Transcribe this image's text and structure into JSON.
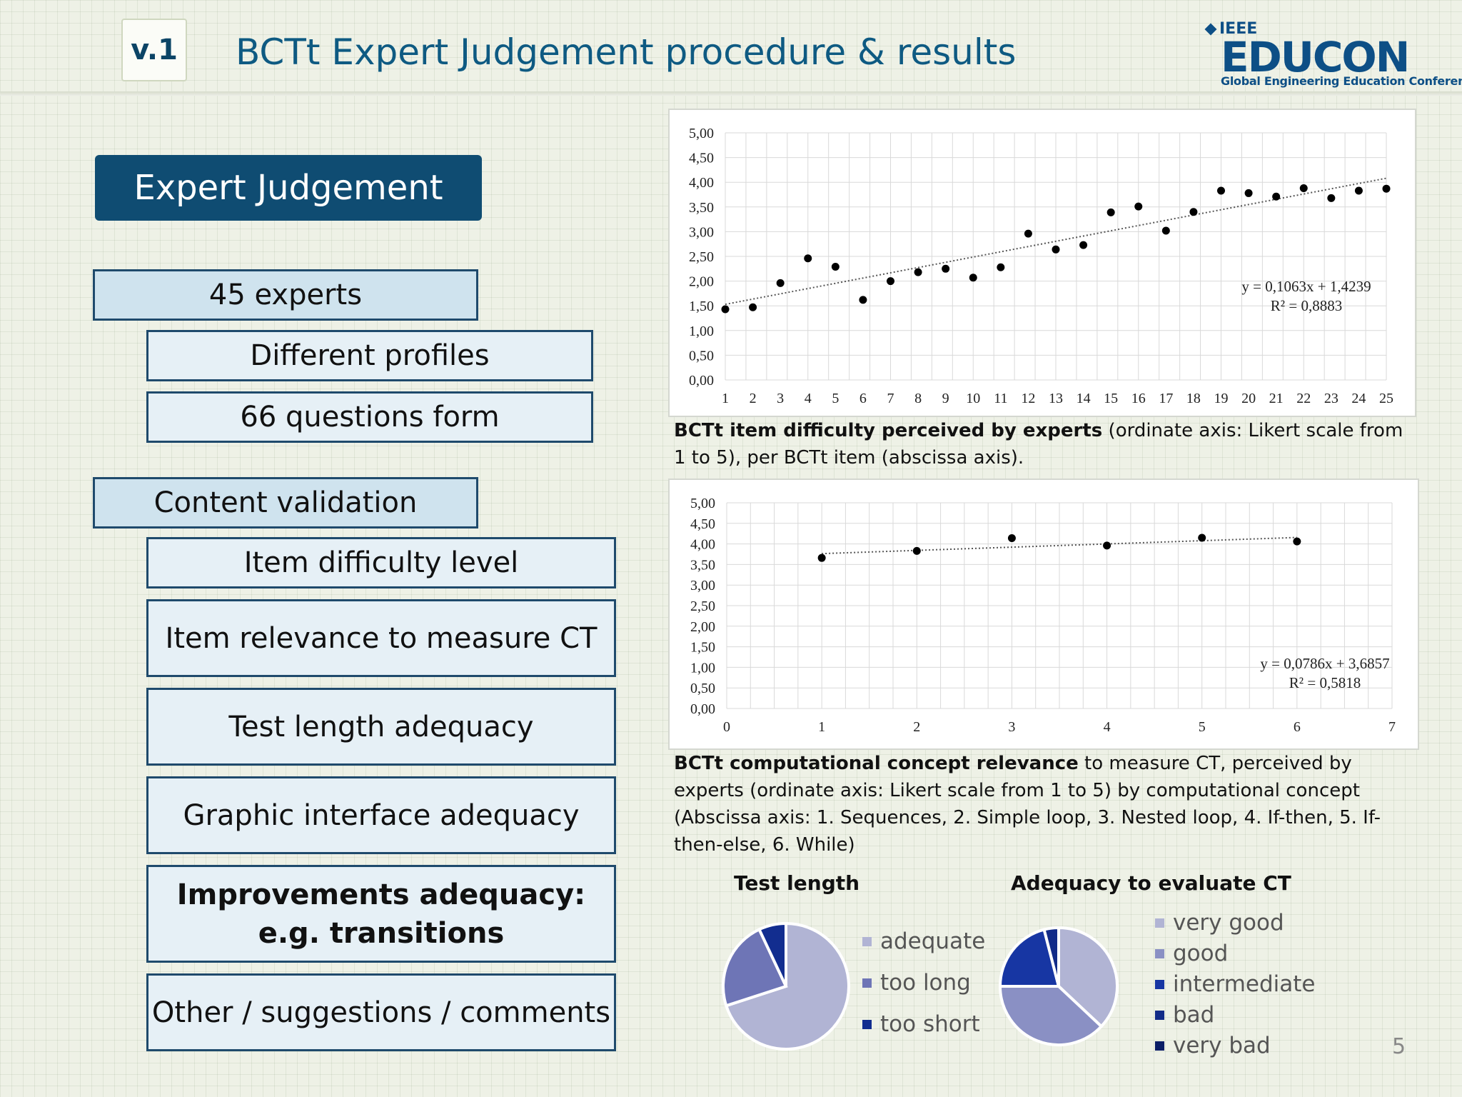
{
  "header": {
    "version": "v.1",
    "title": "BCTt Expert Judgement procedure & results",
    "logo": {
      "ieee": "IEEE",
      "name": "EDUCON",
      "tagline": "Global Engineering Education Conference"
    }
  },
  "left": {
    "section1": "Expert Judgement",
    "group1": {
      "head": "45 experts",
      "items": [
        "Different profiles",
        "66 questions form"
      ]
    },
    "group2": {
      "head": "Content validation",
      "items": [
        "Item difficulty level",
        "Item relevance to measure CT",
        "Test length adequacy",
        "Graphic interface adequacy",
        "Improvements adequacy:\ne.g. transitions",
        "Other / suggestions / comments"
      ]
    }
  },
  "captions": {
    "c1_bold": "BCTt item difficulty perceived by experts",
    "c1_rest": " (ordinate axis: Likert scale from 1 to 5), per BCTt item (abscissa axis).",
    "c2_bold": "BCTt computational concept relevance",
    "c2_rest": " to measure CT, perceived by experts (ordinate axis: Likert scale from 1 to 5) by computational concept (Abscissa axis: 1. Sequences, 2. Simple loop, 3. Nested loop, 4. If-then, 5. If-then-else, 6. While)"
  },
  "page_number": "5",
  "chart_data": [
    {
      "type": "scatter",
      "title": "",
      "x": [
        1,
        2,
        3,
        4,
        5,
        6,
        7,
        8,
        9,
        10,
        11,
        12,
        13,
        14,
        15,
        16,
        17,
        18,
        19,
        20,
        21,
        22,
        23,
        24,
        25
      ],
      "y": [
        1.43,
        1.47,
        1.96,
        2.46,
        2.29,
        1.62,
        2.0,
        2.18,
        2.25,
        2.07,
        2.28,
        2.96,
        2.64,
        2.73,
        3.39,
        3.51,
        3.02,
        3.4,
        3.83,
        3.78,
        3.71,
        3.88,
        3.68,
        3.83,
        3.87
      ],
      "xlim": [
        1,
        25
      ],
      "ylim": [
        0,
        5
      ],
      "yticks": [
        "0,00",
        "0,50",
        "1,00",
        "1,50",
        "2,00",
        "2,50",
        "3,00",
        "3,50",
        "4,00",
        "4,50",
        "5,00"
      ],
      "xticks": [
        "1",
        "2",
        "3",
        "4",
        "5",
        "6",
        "7",
        "8",
        "9",
        "10",
        "11",
        "12",
        "13",
        "14",
        "15",
        "16",
        "17",
        "18",
        "19",
        "20",
        "21",
        "22",
        "23",
        "24",
        "25"
      ],
      "trendline": {
        "slope": 0.1063,
        "intercept": 1.4239,
        "equation": "y = 0,1063x + 1,4239",
        "r2": "R² = 0,8883"
      },
      "grid": true
    },
    {
      "type": "scatter",
      "title": "",
      "x": [
        1,
        2,
        3,
        4,
        5,
        6
      ],
      "y": [
        3.66,
        3.83,
        4.14,
        3.96,
        4.15,
        4.06
      ],
      "xlim": [
        0,
        7
      ],
      "ylim": [
        0,
        5
      ],
      "yticks": [
        "0,00",
        "0,50",
        "1,00",
        "1,50",
        "2,00",
        "2,50",
        "3,00",
        "3,50",
        "4,00",
        "4,50",
        "5,00"
      ],
      "xticks": [
        "0",
        "1",
        "2",
        "3",
        "4",
        "5",
        "6",
        "7"
      ],
      "trendline": {
        "slope": 0.0786,
        "intercept": 3.6857,
        "equation": "y = 0,0786x + 3,6857",
        "r2": "R² = 0,5818"
      },
      "grid": true
    },
    {
      "type": "pie",
      "title": "Test length",
      "labels": [
        "adequate",
        "too long",
        "too short"
      ],
      "values": [
        70,
        23,
        7
      ],
      "colors": [
        "#b1b4d4",
        "#6e75b6",
        "#122d8f"
      ]
    },
    {
      "type": "pie",
      "title": "Adequacy to evaluate CT",
      "labels": [
        "very good",
        "good",
        "intermediate",
        "bad",
        "very bad"
      ],
      "values": [
        37,
        38,
        21,
        4,
        0
      ],
      "colors": [
        "#b1b4d4",
        "#8a90c4",
        "#1736a3",
        "#122b88",
        "#0a1d66"
      ]
    }
  ]
}
